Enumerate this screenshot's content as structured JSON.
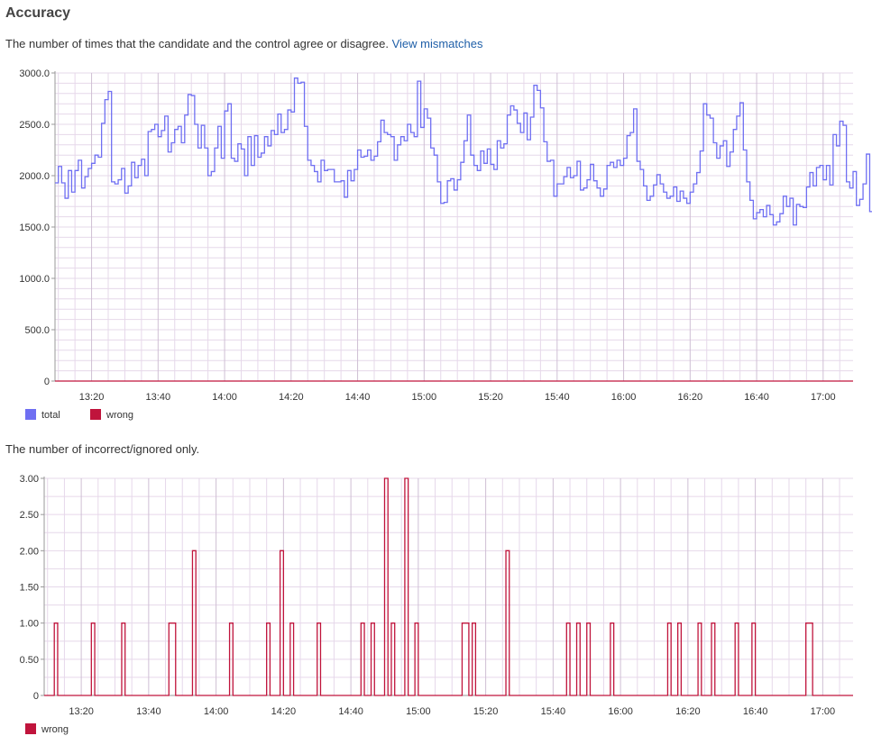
{
  "title": "Accuracy",
  "accuracy_desc": {
    "text": "The number of times that the candidate and the control agree or disagree.",
    "link": "View mismatches"
  },
  "incorrect_desc": "The number of incorrect/ignored only.",
  "colors": {
    "total": "#6f6ff2",
    "wrong": "#c0143c",
    "grid": "#e6d8ea"
  },
  "chart_data": [
    {
      "type": "line",
      "step": true,
      "xlabel": "",
      "ylabel": "",
      "xlim": [
        "13:09",
        "17:09"
      ],
      "ylim": [
        0,
        3000
      ],
      "x_ticks": [
        "13:20",
        "13:40",
        "14:00",
        "14:20",
        "14:40",
        "15:00",
        "15:20",
        "15:40",
        "16:00",
        "16:20",
        "16:40",
        "17:00"
      ],
      "y_ticks": [
        {
          "value": 0,
          "label": "0"
        },
        {
          "value": 500,
          "label": "500.0"
        },
        {
          "value": 1000,
          "label": "1000.0"
        },
        {
          "value": 1500,
          "label": "1500.0"
        },
        {
          "value": 2000,
          "label": "2000.0"
        },
        {
          "value": 2500,
          "label": "2500.0"
        },
        {
          "value": 3000,
          "label": "3000.0"
        }
      ],
      "grid": true,
      "legend": "bottom-left",
      "series": [
        {
          "name": "total",
          "x_start": "13:09",
          "x_step_minutes": 1,
          "values": [
            1930,
            2090,
            1930,
            1780,
            2050,
            1840,
            2050,
            2150,
            1880,
            1990,
            2070,
            2120,
            2200,
            2180,
            2510,
            2740,
            2820,
            1940,
            1920,
            1960,
            2070,
            1830,
            1900,
            2130,
            1980,
            2100,
            2160,
            2000,
            2430,
            2450,
            2500,
            2380,
            2440,
            2580,
            2230,
            2320,
            2450,
            2480,
            2320,
            2590,
            2790,
            2780,
            2500,
            2270,
            2490,
            2270,
            2000,
            2040,
            2270,
            2480,
            2170,
            2630,
            2700,
            2170,
            2140,
            2310,
            2260,
            2000,
            2380,
            2100,
            2390,
            2180,
            2220,
            2380,
            2290,
            2440,
            2400,
            2600,
            2420,
            2450,
            2640,
            2620,
            2950,
            2900,
            2910,
            2480,
            2150,
            2100,
            2040,
            1940,
            2150,
            2050,
            2060,
            2060,
            1940,
            1940,
            1950,
            1790,
            2050,
            1950,
            2060,
            2250,
            2180,
            2190,
            2250,
            2150,
            2190,
            2330,
            2540,
            2420,
            2400,
            2380,
            2150,
            2300,
            2380,
            2340,
            2500,
            2420,
            2380,
            2920,
            2470,
            2650,
            2560,
            2270,
            2200,
            1940,
            1730,
            1740,
            1950,
            1970,
            1860,
            1960,
            2130,
            2340,
            2590,
            2200,
            2100,
            2050,
            2240,
            2120,
            2260,
            2110,
            2060,
            2340,
            2270,
            2310,
            2590,
            2680,
            2640,
            2510,
            2420,
            2610,
            2350,
            2570,
            2880,
            2830,
            2660,
            2330,
            2140,
            2150,
            1800,
            1920,
            1920,
            1990,
            2080,
            1980,
            2000,
            2140,
            1860,
            1880,
            1960,
            2110,
            1950,
            1880,
            1800,
            1870,
            2100,
            2130,
            2080,
            2150,
            2100,
            2170,
            2390,
            2420,
            2650,
            2140,
            2060,
            1900,
            1760,
            1800,
            1910,
            2010,
            1920,
            1840,
            1780,
            1800,
            1890,
            1750,
            1850,
            1780,
            1730,
            1840,
            1920,
            2030,
            2240,
            2700,
            2590,
            2560,
            2320,
            2170,
            2290,
            2340,
            2090,
            2230,
            2450,
            2580,
            2710,
            2250,
            1940,
            1760,
            1580,
            1640,
            1670,
            1600,
            1710,
            1620,
            1520,
            1550,
            1630,
            1800,
            1700,
            1780,
            1520,
            1720,
            1700,
            1690,
            1890,
            2030,
            1900,
            2080,
            2100,
            1960,
            2100,
            1910,
            2400,
            2290,
            2530,
            2490,
            1940,
            1880,
            2040,
            1710,
            1770,
            1920,
            2210,
            1650
          ],
          "color": "#6f6ff2"
        },
        {
          "name": "wrong",
          "values": [
            0
          ],
          "color": "#c0143c"
        }
      ]
    },
    {
      "type": "line",
      "step": true,
      "xlabel": "",
      "ylabel": "",
      "xlim": [
        "13:09",
        "17:09"
      ],
      "ylim": [
        0,
        3
      ],
      "x_ticks": [
        "13:20",
        "13:40",
        "14:00",
        "14:20",
        "14:40",
        "15:00",
        "15:20",
        "15:40",
        "16:00",
        "16:20",
        "16:40",
        "17:00"
      ],
      "y_ticks": [
        {
          "value": 0,
          "label": "0"
        },
        {
          "value": 0.5,
          "label": "0.50"
        },
        {
          "value": 1,
          "label": "1.00"
        },
        {
          "value": 1.5,
          "label": "1.50"
        },
        {
          "value": 2,
          "label": "2.00"
        },
        {
          "value": 2.5,
          "label": "2.50"
        },
        {
          "value": 3,
          "label": "3.00"
        }
      ],
      "grid": true,
      "legend": "bottom-left",
      "series": [
        {
          "name": "wrong",
          "color": "#c0143c",
          "spikes": [
            {
              "from": "13:12",
              "to": "13:13",
              "value": 1
            },
            {
              "from": "13:23",
              "to": "13:24",
              "value": 1
            },
            {
              "from": "13:32",
              "to": "13:33",
              "value": 1
            },
            {
              "from": "13:46",
              "to": "13:48",
              "value": 1
            },
            {
              "from": "13:53",
              "to": "13:54",
              "value": 2
            },
            {
              "from": "14:04",
              "to": "14:05",
              "value": 1
            },
            {
              "from": "14:15",
              "to": "14:16",
              "value": 1
            },
            {
              "from": "14:19",
              "to": "14:20",
              "value": 2
            },
            {
              "from": "14:22",
              "to": "14:23",
              "value": 1
            },
            {
              "from": "14:30",
              "to": "14:31",
              "value": 1
            },
            {
              "from": "14:43",
              "to": "14:44",
              "value": 1
            },
            {
              "from": "14:46",
              "to": "14:47",
              "value": 1
            },
            {
              "from": "14:50",
              "to": "14:51",
              "value": 3
            },
            {
              "from": "14:52",
              "to": "14:53",
              "value": 1
            },
            {
              "from": "14:56",
              "to": "14:57",
              "value": 3
            },
            {
              "from": "14:59",
              "to": "15:00",
              "value": 1
            },
            {
              "from": "15:13",
              "to": "15:15",
              "value": 1
            },
            {
              "from": "15:16",
              "to": "15:17",
              "value": 1
            },
            {
              "from": "15:26",
              "to": "15:27",
              "value": 2
            },
            {
              "from": "15:44",
              "to": "15:45",
              "value": 1
            },
            {
              "from": "15:47",
              "to": "15:48",
              "value": 1
            },
            {
              "from": "15:50",
              "to": "15:51",
              "value": 1
            },
            {
              "from": "15:57",
              "to": "15:58",
              "value": 1
            },
            {
              "from": "16:14",
              "to": "16:15",
              "value": 1
            },
            {
              "from": "16:17",
              "to": "16:18",
              "value": 1
            },
            {
              "from": "16:23",
              "to": "16:24",
              "value": 1
            },
            {
              "from": "16:27",
              "to": "16:28",
              "value": 1
            },
            {
              "from": "16:34",
              "to": "16:35",
              "value": 1
            },
            {
              "from": "16:39",
              "to": "16:40",
              "value": 1
            },
            {
              "from": "16:55",
              "to": "16:57",
              "value": 1
            }
          ]
        }
      ]
    }
  ]
}
